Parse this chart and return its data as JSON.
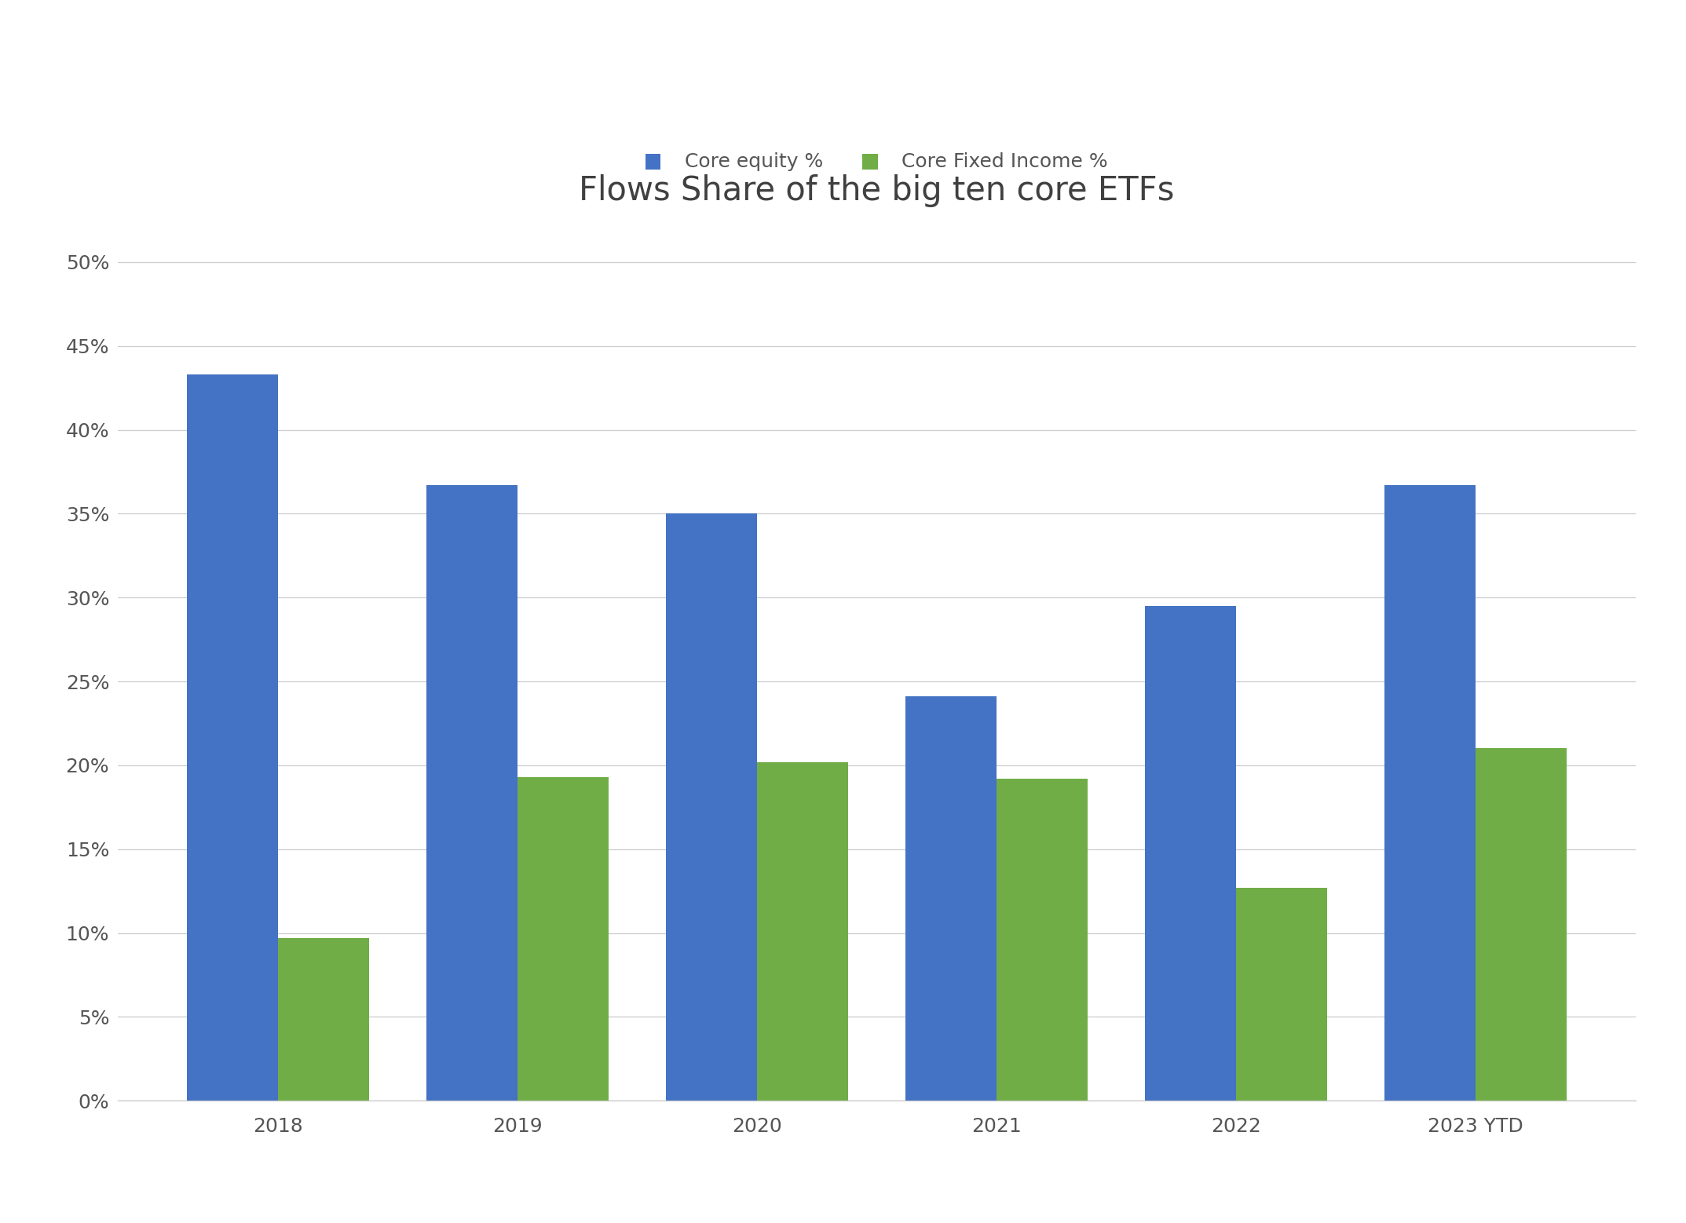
{
  "title": "Flows Share of the big ten core ETFs",
  "categories": [
    "2018",
    "2019",
    "2020",
    "2021",
    "2022",
    "2023 YTD"
  ],
  "core_equity": [
    0.433,
    0.367,
    0.35,
    0.241,
    0.295,
    0.367
  ],
  "core_fixed_income": [
    0.097,
    0.193,
    0.202,
    0.192,
    0.127,
    0.21
  ],
  "equity_color": "#4472C4",
  "fixed_income_color": "#70AD47",
  "equity_label": "Core equity %",
  "fixed_income_label": "Core Fixed Income %",
  "ylim": [
    0,
    0.525
  ],
  "yticks": [
    0,
    0.05,
    0.1,
    0.15,
    0.2,
    0.25,
    0.3,
    0.35,
    0.4,
    0.45,
    0.5
  ],
  "background_color": "#ffffff",
  "grid_color": "#cccccc",
  "title_fontsize": 30,
  "legend_fontsize": 18,
  "tick_fontsize": 18,
  "bar_width": 0.38,
  "title_color": "#404040"
}
